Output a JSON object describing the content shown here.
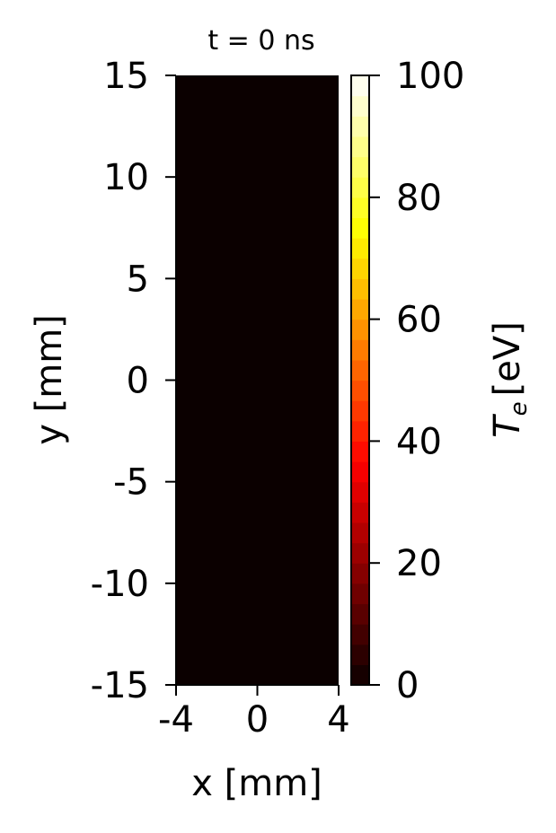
{
  "chart_data": {
    "type": "heatmap",
    "title": "t = 0 ns",
    "xlabel": "x [mm]",
    "ylabel": "y [mm]",
    "xlim": [
      -4,
      4
    ],
    "ylim": [
      -15,
      15
    ],
    "x_ticks": [
      -4,
      0,
      4
    ],
    "y_ticks": [
      -15,
      -10,
      -5,
      0,
      5,
      10,
      15
    ],
    "values": [
      [
        0
      ]
    ],
    "field_color": "#0b0000",
    "colorbar": {
      "label": "T",
      "label_subscript": "e",
      "label_unit": "[eV]",
      "range": [
        0,
        100
      ],
      "ticks": [
        0,
        20,
        40,
        60,
        80,
        100
      ],
      "colormap": "hot",
      "levels": 30
    },
    "grid": false
  }
}
